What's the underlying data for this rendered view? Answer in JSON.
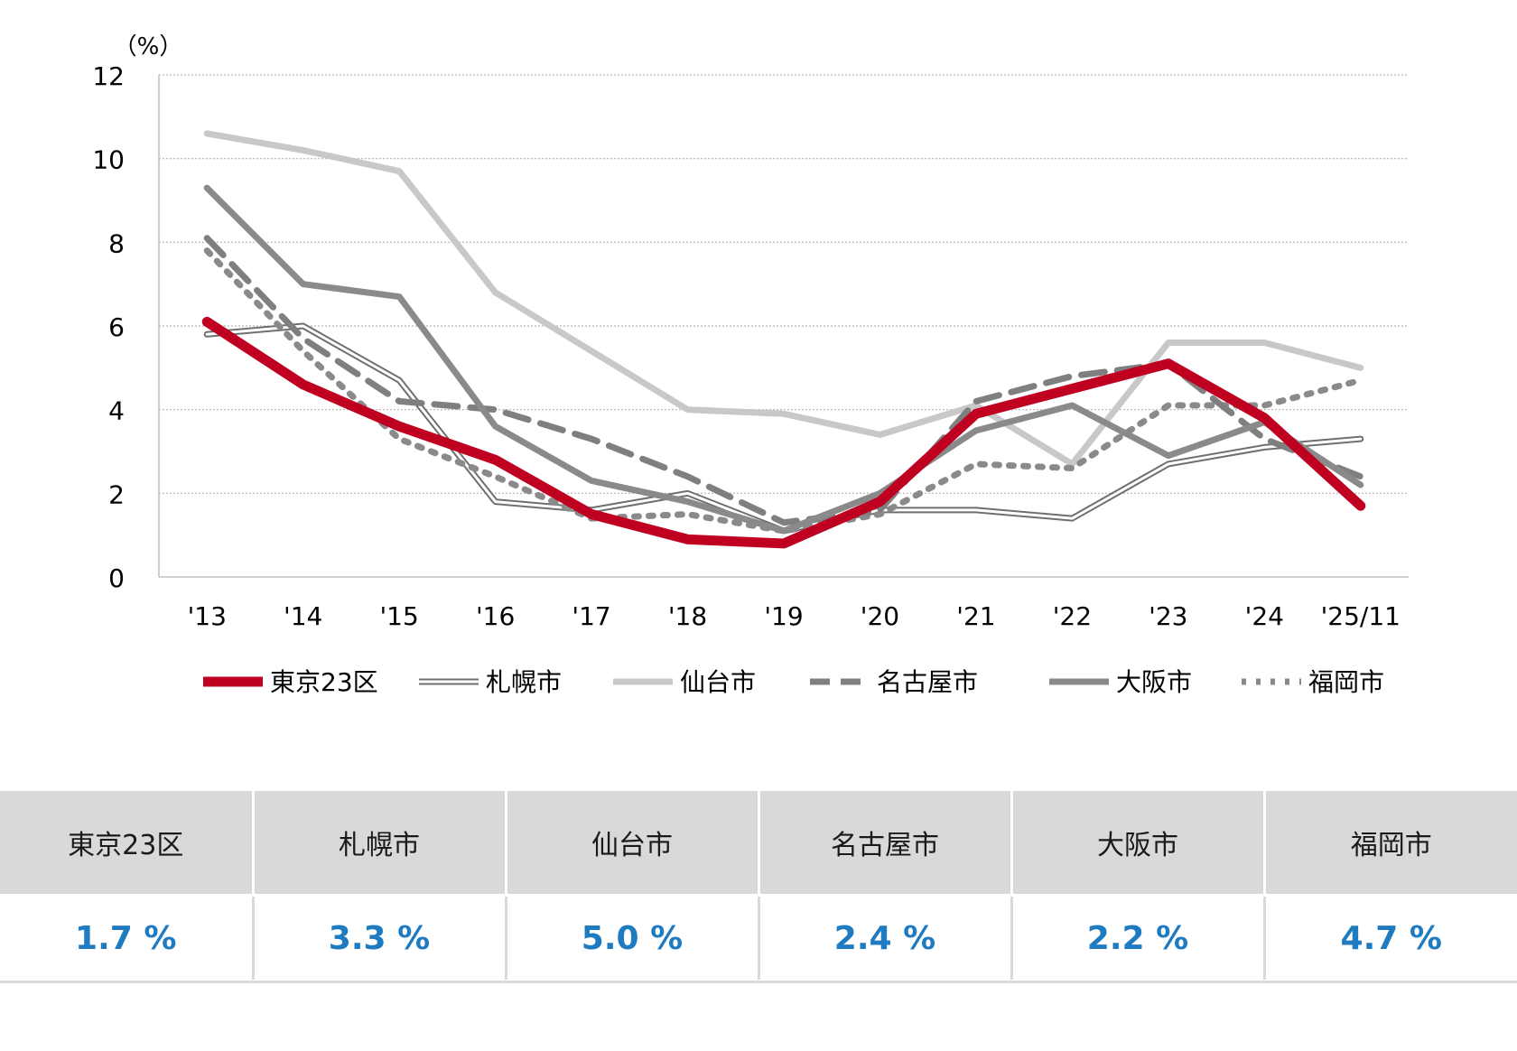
{
  "chart_data": {
    "type": "line",
    "ylabel": "（%）",
    "ylim": [
      0,
      12
    ],
    "yticks": [
      0,
      2,
      4,
      6,
      8,
      10,
      12
    ],
    "grid": true,
    "legend_position": "bottom",
    "categories": [
      "'13",
      "'14",
      "'15",
      "'16",
      "'17",
      "'18",
      "'19",
      "'20",
      "'21",
      "'22",
      "'23",
      "'24",
      "'25/11"
    ],
    "series": [
      {
        "name": "東京23区",
        "color": "#c00020",
        "style": "thick",
        "values": [
          6.1,
          4.6,
          3.6,
          2.8,
          1.5,
          0.9,
          0.8,
          1.8,
          3.9,
          4.5,
          5.1,
          3.8,
          1.7
        ]
      },
      {
        "name": "札幌市",
        "color": "#6f6f6f",
        "style": "double",
        "values": [
          5.8,
          6.0,
          4.7,
          1.8,
          1.6,
          2.0,
          1.1,
          1.6,
          1.6,
          1.4,
          2.7,
          3.1,
          3.3
        ]
      },
      {
        "name": "仙台市",
        "color": "#c8c8c8",
        "style": "solid",
        "values": [
          10.6,
          10.2,
          9.7,
          6.8,
          5.4,
          4.0,
          3.9,
          3.4,
          4.1,
          2.7,
          5.6,
          5.6,
          5.0
        ]
      },
      {
        "name": "名古屋市",
        "color": "#7f7f7f",
        "style": "dashed",
        "values": [
          8.1,
          5.7,
          4.2,
          4.0,
          3.3,
          2.4,
          1.3,
          1.6,
          4.2,
          4.8,
          5.1,
          3.3,
          2.4
        ]
      },
      {
        "name": "大阪市",
        "color": "#8a8a8a",
        "style": "solid-dark",
        "values": [
          9.3,
          7.0,
          6.7,
          3.6,
          2.3,
          1.8,
          1.1,
          2.0,
          3.5,
          4.1,
          2.9,
          3.7,
          2.2
        ]
      },
      {
        "name": "福岡市",
        "color": "#8a8a8a",
        "style": "dotted",
        "values": [
          7.8,
          5.4,
          3.3,
          2.4,
          1.4,
          1.5,
          1.1,
          1.5,
          2.7,
          2.6,
          4.1,
          4.1,
          4.7
        ]
      }
    ]
  },
  "summary": {
    "labels": [
      "東京23区",
      "札幌市",
      "仙台市",
      "名古屋市",
      "大阪市",
      "福岡市"
    ],
    "values": [
      "1.7 %",
      "3.3 %",
      "5.0 %",
      "2.4 %",
      "2.2 %",
      "4.7 %"
    ]
  }
}
